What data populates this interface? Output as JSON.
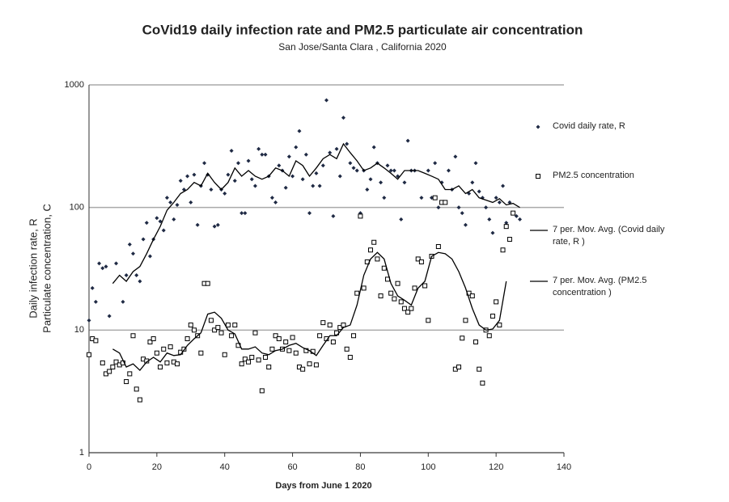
{
  "chart_data": {
    "type": "scatter",
    "title": "CoVid19 daily infection rate and  PM2.5 particulate air concentration",
    "subtitle": "San Jose/Santa Clara , California 2020",
    "xlabel": "Days from June 1 2020",
    "ylabel": [
      "Daily infection rate, R",
      "Particulate concentration, C"
    ],
    "xlim": [
      0,
      140
    ],
    "xticks": [
      0,
      20,
      40,
      60,
      80,
      100,
      120,
      140
    ],
    "ylim": [
      1,
      1000
    ],
    "yticks": [
      1,
      10,
      100,
      1000
    ],
    "yscale": "log",
    "grid": true,
    "series": [
      {
        "name": "Covid daily rate, R",
        "type": "scatter",
        "marker": "diamond",
        "color": "#1f2a44",
        "x": [
          0,
          1,
          2,
          3,
          4,
          5,
          6,
          8,
          10,
          11,
          12,
          13,
          14,
          15,
          16,
          17,
          18,
          19,
          20,
          21,
          22,
          23,
          24,
          25,
          26,
          27,
          28,
          29,
          30,
          31,
          32,
          33,
          34,
          35,
          36,
          37,
          38,
          39,
          40,
          41,
          42,
          43,
          44,
          45,
          46,
          47,
          48,
          49,
          50,
          51,
          52,
          53,
          54,
          55,
          56,
          57,
          58,
          59,
          60,
          61,
          62,
          63,
          64,
          65,
          66,
          67,
          68,
          69,
          70,
          71,
          72,
          73,
          74,
          75,
          76,
          77,
          78,
          79,
          80,
          81,
          82,
          83,
          84,
          85,
          86,
          87,
          88,
          89,
          90,
          91,
          92,
          93,
          94,
          95,
          96,
          98,
          100,
          101,
          102,
          103,
          104,
          106,
          107,
          108,
          109,
          110,
          111,
          112,
          113,
          114,
          115,
          116,
          117,
          118,
          119,
          120,
          121,
          122,
          123,
          124,
          125,
          126,
          127
        ],
        "values": [
          12,
          22,
          17,
          35,
          32,
          33,
          13,
          35,
          17,
          28,
          50,
          42,
          28,
          25,
          55,
          75,
          40,
          55,
          82,
          77,
          65,
          120,
          110,
          80,
          105,
          165,
          140,
          180,
          110,
          185,
          72,
          150,
          230,
          185,
          140,
          70,
          72,
          140,
          130,
          185,
          290,
          165,
          230,
          90,
          90,
          240,
          170,
          150,
          300,
          270,
          270,
          180,
          120,
          110,
          220,
          200,
          145,
          260,
          180,
          310,
          420,
          170,
          270,
          90,
          150,
          190,
          150,
          220,
          750,
          280,
          85,
          300,
          180,
          540,
          330,
          230,
          210,
          200,
          90,
          200,
          140,
          170,
          310,
          230,
          160,
          120,
          220,
          200,
          200,
          180,
          80,
          160,
          350,
          200,
          200,
          120,
          200,
          120,
          230,
          100,
          160,
          200,
          140,
          260,
          100,
          90,
          72,
          130,
          160,
          230,
          135,
          120,
          100,
          80,
          62,
          120,
          110,
          150,
          75,
          110,
          90,
          85,
          80
        ]
      },
      {
        "name": "PM2.5 concentration",
        "type": "scatter",
        "marker": "square",
        "color": "#000000",
        "x": [
          0,
          1,
          2,
          4,
          5,
          6,
          7,
          8,
          9,
          10,
          11,
          12,
          13,
          14,
          15,
          16,
          17,
          18,
          19,
          20,
          21,
          22,
          23,
          24,
          25,
          26,
          27,
          28,
          29,
          30,
          31,
          32,
          33,
          34,
          35,
          36,
          37,
          38,
          39,
          40,
          41,
          42,
          43,
          44,
          45,
          46,
          47,
          48,
          49,
          50,
          51,
          52,
          53,
          54,
          55,
          56,
          57,
          58,
          59,
          60,
          61,
          62,
          63,
          64,
          65,
          66,
          67,
          68,
          69,
          70,
          71,
          72,
          73,
          74,
          75,
          76,
          77,
          78,
          79,
          80,
          81,
          82,
          83,
          84,
          85,
          86,
          87,
          88,
          89,
          90,
          91,
          92,
          93,
          94,
          95,
          96,
          97,
          98,
          99,
          100,
          101,
          102,
          103,
          104,
          105,
          108,
          109,
          110,
          111,
          112,
          113,
          114,
          115,
          116,
          117,
          118,
          119,
          120,
          121,
          122,
          123,
          124,
          125
        ],
        "values": [
          6.3,
          8.5,
          8.2,
          5.4,
          4.4,
          4.6,
          5,
          5.5,
          5.2,
          5.4,
          3.8,
          4.4,
          9,
          3.3,
          2.7,
          5.8,
          5.6,
          8,
          8.5,
          6.5,
          5,
          7,
          5.4,
          7.3,
          5.5,
          5.3,
          6.6,
          7,
          8.5,
          11,
          10,
          9,
          6.5,
          24,
          24,
          12,
          10,
          10.5,
          9.5,
          6.3,
          11,
          9,
          11,
          7.5,
          5.3,
          5.8,
          5.5,
          6,
          9.5,
          5.7,
          3.2,
          6,
          5,
          7,
          9,
          8.5,
          7,
          8,
          6.8,
          8.7,
          6.5,
          5,
          4.8,
          6.8,
          5.3,
          6.7,
          5.2,
          9,
          11.5,
          8.5,
          11,
          8,
          9.5,
          10.5,
          11,
          7,
          6,
          9,
          20,
          85,
          22,
          36,
          45,
          52,
          38,
          19,
          32,
          26,
          20,
          18,
          24,
          17,
          15,
          14,
          15,
          22,
          38,
          36,
          23,
          12,
          40,
          120,
          48,
          110,
          110,
          4.8,
          5,
          8.6,
          12,
          20,
          19,
          8,
          4.8,
          3.7,
          10,
          9,
          13,
          17,
          11,
          45,
          70,
          55,
          90
        ]
      },
      {
        "name": "7 per. Mov. Avg. (Covid daily rate, R )",
        "type": "line",
        "color": "#000000",
        "x": [
          7,
          9,
          11,
          13,
          15,
          17,
          19,
          21,
          23,
          25,
          27,
          29,
          31,
          33,
          35,
          37,
          39,
          41,
          43,
          45,
          47,
          49,
          51,
          53,
          55,
          57,
          59,
          61,
          63,
          65,
          67,
          69,
          71,
          73,
          75,
          77,
          79,
          81,
          83,
          85,
          87,
          89,
          91,
          93,
          95,
          97,
          99,
          101,
          103,
          105,
          107,
          109,
          111,
          113,
          115,
          117,
          119,
          121,
          123,
          125,
          127
        ],
        "values": [
          24,
          28,
          25,
          30,
          33,
          42,
          55,
          70,
          95,
          110,
          130,
          140,
          160,
          150,
          190,
          160,
          140,
          160,
          210,
          180,
          200,
          180,
          170,
          180,
          210,
          200,
          180,
          240,
          220,
          180,
          210,
          250,
          270,
          250,
          330,
          280,
          240,
          200,
          210,
          230,
          210,
          190,
          170,
          200,
          200,
          200,
          190,
          180,
          170,
          140,
          140,
          150,
          130,
          140,
          120,
          115,
          110,
          118,
          105,
          108,
          100
        ]
      },
      {
        "name": "7 per. Mov. Avg. (PM2.5 concentration )",
        "type": "line",
        "color": "#000000",
        "x": [
          7,
          9,
          11,
          13,
          15,
          17,
          19,
          21,
          23,
          25,
          27,
          29,
          31,
          33,
          35,
          37,
          39,
          41,
          43,
          45,
          47,
          49,
          51,
          53,
          55,
          57,
          59,
          61,
          63,
          65,
          67,
          69,
          71,
          73,
          75,
          77,
          79,
          81,
          83,
          85,
          87,
          89,
          91,
          93,
          95,
          97,
          99,
          101,
          103,
          105,
          107,
          109,
          111,
          113,
          115,
          117,
          119,
          121,
          123
        ],
        "values": [
          7,
          6.5,
          5,
          5.3,
          4.7,
          5.5,
          6,
          5.5,
          6.5,
          6.2,
          6.3,
          7.5,
          8.5,
          9.5,
          13.5,
          14,
          12.5,
          10,
          9.3,
          7,
          7,
          7.3,
          6.5,
          6.3,
          6.8,
          7,
          7.5,
          7.8,
          7.2,
          6.8,
          6.2,
          7.5,
          9,
          9,
          10.5,
          11,
          16,
          28,
          38,
          43,
          38,
          24,
          19,
          17.5,
          16,
          22,
          25,
          40,
          43,
          42,
          38,
          30,
          22,
          15,
          11,
          10,
          10.2,
          12,
          25
        ]
      }
    ]
  }
}
